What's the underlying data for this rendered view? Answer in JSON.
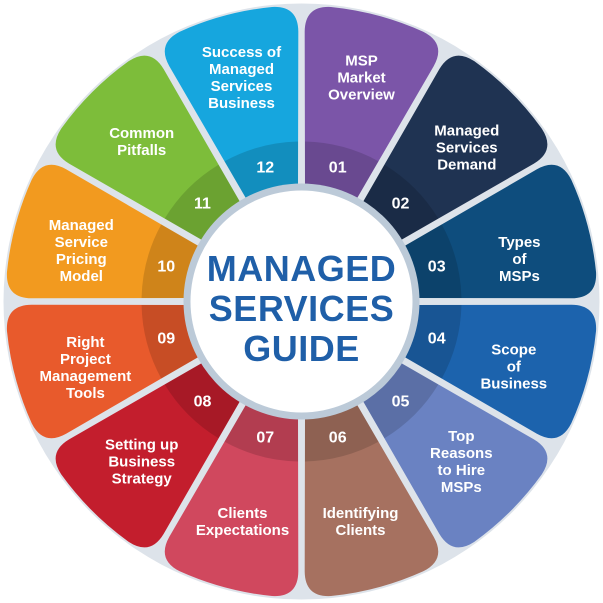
{
  "title_lines": [
    "MANAGED",
    "SERVICES",
    "GUIDE"
  ],
  "segments": [
    {
      "number": "01",
      "lines": [
        "MSP",
        "Market",
        "Overview"
      ],
      "color": "#7b55a8"
    },
    {
      "number": "02",
      "lines": [
        "Managed",
        "Services",
        "Demand"
      ],
      "color": "#1f3352"
    },
    {
      "number": "03",
      "lines": [
        "Types",
        "of",
        "MSPs"
      ],
      "color": "#0e4d7d"
    },
    {
      "number": "04",
      "lines": [
        "Scope",
        "of",
        "Business"
      ],
      "color": "#1c63ad"
    },
    {
      "number": "05",
      "lines": [
        "Top",
        "Reasons",
        "to Hire",
        "MSPs"
      ],
      "color": "#6a82c2"
    },
    {
      "number": "06",
      "lines": [
        "Identifying",
        "Clients"
      ],
      "color": "#a67160"
    },
    {
      "number": "07",
      "lines": [
        "Clients",
        "Expectations"
      ],
      "color": "#d0485e"
    },
    {
      "number": "08",
      "lines": [
        "Setting up",
        "Business",
        "Strategy"
      ],
      "color": "#c31e2d"
    },
    {
      "number": "09",
      "lines": [
        "Right",
        "Project",
        "Management",
        "Tools"
      ],
      "color": "#e85a2c"
    },
    {
      "number": "10",
      "lines": [
        "Managed",
        "Service",
        "Pricing",
        "Model"
      ],
      "color": "#f29a1f"
    },
    {
      "number": "11",
      "lines": [
        "Common",
        "Pitfalls"
      ],
      "color": "#7dbd3a"
    },
    {
      "number": "12",
      "lines": [
        "Success of",
        "Managed",
        "Services",
        "Business"
      ],
      "color": "#16a6de"
    }
  ],
  "colors": {
    "ring_background": "#dde3ea",
    "center_fill": "#ffffff",
    "center_ring": "#bccad8",
    "title": "#1f5fa8"
  }
}
